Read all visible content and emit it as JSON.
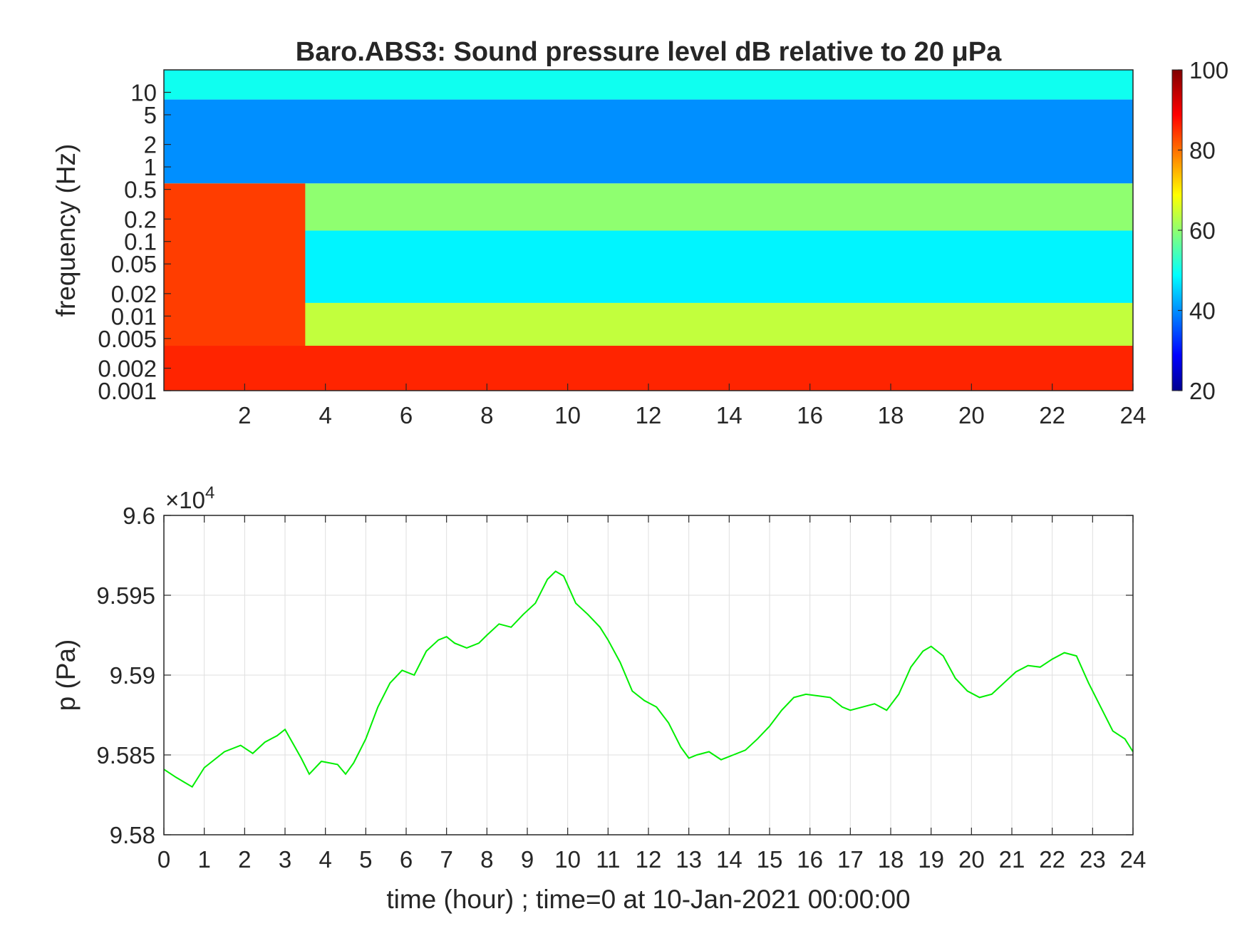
{
  "chart_data": [
    {
      "type": "heatmap",
      "title": "Baro.ABS3: Sound pressure level dB relative to 20 μPa",
      "ylabel": "frequency (Hz)",
      "xlabel": "",
      "xlim": [
        0,
        24
      ],
      "x_ticks": [
        "2",
        "4",
        "6",
        "8",
        "10",
        "12",
        "14",
        "16",
        "18",
        "20",
        "22",
        "24"
      ],
      "y_scale": "log",
      "ylim": [
        0.001,
        20
      ],
      "y_ticks": [
        "0.001",
        "0.002",
        "0.005",
        "0.01",
        "0.02",
        "0.05",
        "0.1",
        "0.2",
        "0.5",
        "1",
        "2",
        "5",
        "10"
      ],
      "colorbar": {
        "range": [
          20,
          100
        ],
        "ticks": [
          "20",
          "40",
          "60",
          "80",
          "100"
        ],
        "colormap": "jet",
        "colors": [
          "#00008f",
          "#0000ff",
          "#00ffff",
          "#ffff00",
          "#ff0000",
          "#800000"
        ]
      },
      "bands": [
        {
          "f_low": 8,
          "f_high": 20,
          "level_db": 50
        },
        {
          "f_low": 0.6,
          "f_high": 8,
          "level_db": 40
        },
        {
          "f_low": 0.14,
          "f_high": 0.6,
          "level_db": 60
        },
        {
          "f_low": 0.015,
          "f_high": 0.14,
          "level_db": 48
        },
        {
          "f_low": 0.004,
          "f_high": 0.015,
          "level_db": 64
        },
        {
          "f_low": 0.001,
          "f_high": 0.004,
          "level_db": 86
        }
      ],
      "events": [
        {
          "t_start": 0,
          "t_end": 3.5,
          "f_low": 0.004,
          "f_high": 0.6,
          "level_db": 84
        }
      ]
    },
    {
      "type": "line",
      "ylabel": "p (Pa)",
      "xlabel": "time (hour) ; time=0 at 10-Jan-2021 00:00:00",
      "xlim": [
        0,
        24
      ],
      "ylim": [
        95800,
        96000
      ],
      "y_exponent_label": "×10",
      "y_exponent": "4",
      "x_ticks": [
        "0",
        "1",
        "2",
        "3",
        "4",
        "5",
        "6",
        "7",
        "8",
        "9",
        "10",
        "11",
        "12",
        "13",
        "14",
        "15",
        "16",
        "17",
        "18",
        "19",
        "20",
        "21",
        "22",
        "23",
        "24"
      ],
      "y_ticks": [
        "9.58",
        "9.585",
        "9.59",
        "9.595",
        "9.6"
      ],
      "grid": true,
      "series_color": "#00ee00",
      "series": [
        {
          "x": [
            0,
            0.3,
            0.7,
            1.0,
            1.5,
            1.9,
            2.2,
            2.5,
            2.8,
            3.0,
            3.2,
            3.4,
            3.6,
            3.9,
            4.3,
            4.5,
            4.7,
            5.0,
            5.3,
            5.6,
            5.9,
            6.2,
            6.5,
            6.8,
            7.0,
            7.2,
            7.5,
            7.8,
            8.0,
            8.3,
            8.6,
            8.9,
            9.2,
            9.5,
            9.7,
            9.9,
            10.2,
            10.5,
            10.8,
            11.0,
            11.3,
            11.6,
            11.9,
            12.2,
            12.5,
            12.8,
            13.0,
            13.2,
            13.5,
            13.8,
            14.1,
            14.4,
            14.7,
            15.0,
            15.3,
            15.6,
            15.9,
            16.2,
            16.5,
            16.8,
            17.0,
            17.3,
            17.6,
            17.9,
            18.2,
            18.5,
            18.8,
            19.0,
            19.3,
            19.6,
            19.9,
            20.2,
            20.5,
            20.8,
            21.1,
            21.4,
            21.7,
            22.0,
            22.3,
            22.6,
            22.9,
            23.2,
            23.5,
            23.8,
            24.0
          ],
          "y": [
            95841,
            95836,
            95830,
            95842,
            95852,
            95856,
            95851,
            95858,
            95862,
            95866,
            95857,
            95848,
            95838,
            95846,
            95844,
            95838,
            95845,
            95860,
            95880,
            95895,
            95903,
            95900,
            95915,
            95922,
            95924,
            95920,
            95917,
            95920,
            95925,
            95932,
            95930,
            95938,
            95945,
            95960,
            95965,
            95962,
            95945,
            95938,
            95930,
            95922,
            95908,
            95890,
            95884,
            95880,
            95870,
            95855,
            95848,
            95850,
            95852,
            95847,
            95850,
            95853,
            95860,
            95868,
            95878,
            95886,
            95888,
            95887,
            95886,
            95880,
            95878,
            95880,
            95882,
            95878,
            95888,
            95905,
            95915,
            95918,
            95912,
            95898,
            95890,
            95886,
            95888,
            95895,
            95902,
            95906,
            95905,
            95910,
            95914,
            95912,
            95895,
            95880,
            95865,
            95860,
            95852
          ]
        }
      ]
    }
  ]
}
